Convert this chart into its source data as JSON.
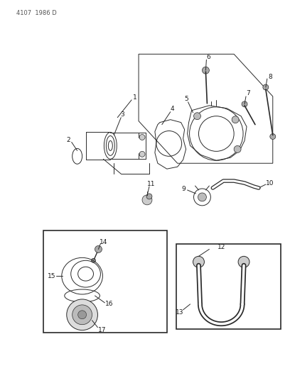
{
  "header": "4107  1986 D",
  "bg": "#ffffff",
  "lc": "#2a2a2a",
  "fig_w": 4.08,
  "fig_h": 5.33,
  "dpi": 100,
  "label_fs": 6.5,
  "header_fs": 6.0,
  "header_color": "#555555"
}
